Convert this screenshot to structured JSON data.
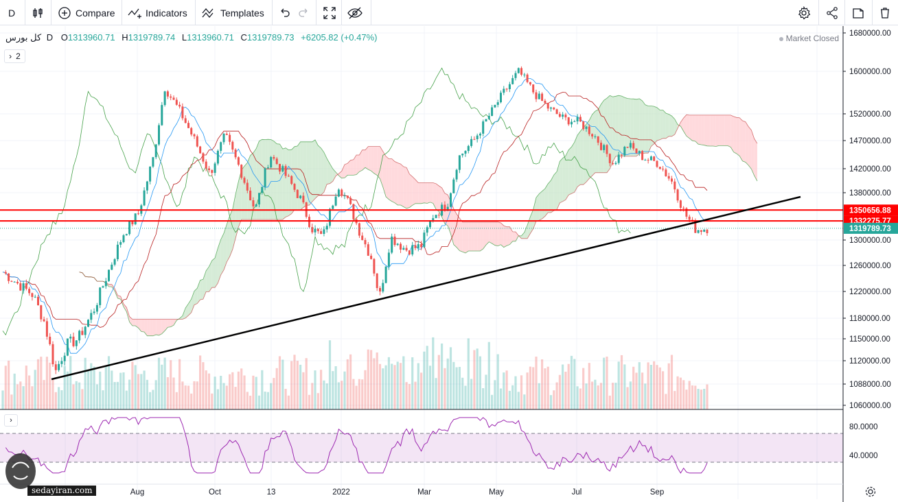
{
  "toolbar": {
    "interval": "D",
    "compare_label": "Compare",
    "indicators_label": "Indicators",
    "templates_label": "Templates"
  },
  "legend": {
    "symbol": "کل بورس",
    "interval": "D",
    "open_label": "O",
    "open": "1313960.71",
    "high_label": "H",
    "high": "1319789.74",
    "low_label": "L",
    "low": "1313960.71",
    "close_label": "C",
    "close": "1319789.73",
    "change": "+6205.82 (+0.47%)",
    "collapse_count": "2"
  },
  "market_status": "Market Closed",
  "price_tags": {
    "tag1": "1350656.88",
    "tag2": "1332275.77",
    "tag3": "1319789.73"
  },
  "rsi_ticks": [
    "80.0000",
    "40.0000"
  ],
  "watermark": "sedayiran.com",
  "colors": {
    "up": "#26a69a",
    "down": "#ef5350",
    "tenkan": "#2196f3",
    "kijun": "#b71c1c",
    "lagging": "#43a047",
    "cloud_bull": "#c8e6c9",
    "cloud_bear": "#ffcdd2",
    "rsi": "#9c27b0",
    "hline": "#ff0000",
    "trendline": "#000000"
  },
  "chart_data": {
    "type": "candlestick",
    "symbol": "کل بورس",
    "interval": "D",
    "y_ticks": [
      1680000,
      1600000,
      1520000,
      1470000,
      1420000,
      1380000,
      1300000,
      1260000,
      1220000,
      1180000,
      1150000,
      1120000,
      1088000,
      1060000
    ],
    "y_tick_labels": [
      "1680000.00",
      "1600000.00",
      "1520000.00",
      "1470000.00",
      "1420000.00",
      "1380000.00",
      "1300000.00",
      "1260000.00",
      "1220000.00",
      "1180000.00",
      "1150000.00",
      "1120000.00",
      "1088000.00",
      "1060000.00"
    ],
    "x_labels": [
      "Aug",
      "Oct",
      "13",
      "2022",
      "Mar",
      "May",
      "Jul",
      "Sep"
    ],
    "close_path": [
      {
        "x": 0,
        "y": 1250000
      },
      {
        "x": 0.02,
        "y": 1232000
      },
      {
        "x": 0.04,
        "y": 1215000
      },
      {
        "x": 0.055,
        "y": 1175000
      },
      {
        "x": 0.07,
        "y": 1105000
      },
      {
        "x": 0.085,
        "y": 1142000
      },
      {
        "x": 0.1,
        "y": 1150000
      },
      {
        "x": 0.12,
        "y": 1190000
      },
      {
        "x": 0.14,
        "y": 1250000
      },
      {
        "x": 0.16,
        "y": 1310000
      },
      {
        "x": 0.18,
        "y": 1345000
      },
      {
        "x": 0.2,
        "y": 1440000
      },
      {
        "x": 0.215,
        "y": 1570000
      },
      {
        "x": 0.235,
        "y": 1525000
      },
      {
        "x": 0.255,
        "y": 1470000
      },
      {
        "x": 0.275,
        "y": 1410000
      },
      {
        "x": 0.295,
        "y": 1480000
      },
      {
        "x": 0.315,
        "y": 1420000
      },
      {
        "x": 0.335,
        "y": 1350000
      },
      {
        "x": 0.355,
        "y": 1445000
      },
      {
        "x": 0.375,
        "y": 1410000
      },
      {
        "x": 0.395,
        "y": 1370000
      },
      {
        "x": 0.41,
        "y": 1320000
      },
      {
        "x": 0.425,
        "y": 1305000
      },
      {
        "x": 0.445,
        "y": 1395000
      },
      {
        "x": 0.46,
        "y": 1360000
      },
      {
        "x": 0.475,
        "y": 1310000
      },
      {
        "x": 0.49,
        "y": 1270000
      },
      {
        "x": 0.5,
        "y": 1210000
      },
      {
        "x": 0.515,
        "y": 1305000
      },
      {
        "x": 0.535,
        "y": 1285000
      },
      {
        "x": 0.555,
        "y": 1290000
      },
      {
        "x": 0.57,
        "y": 1340000
      },
      {
        "x": 0.59,
        "y": 1360000
      },
      {
        "x": 0.605,
        "y": 1440000
      },
      {
        "x": 0.625,
        "y": 1470000
      },
      {
        "x": 0.645,
        "y": 1515000
      },
      {
        "x": 0.665,
        "y": 1560000
      },
      {
        "x": 0.685,
        "y": 1600000
      },
      {
        "x": 0.705,
        "y": 1560000
      },
      {
        "x": 0.725,
        "y": 1530000
      },
      {
        "x": 0.745,
        "y": 1510000
      },
      {
        "x": 0.765,
        "y": 1505000
      },
      {
        "x": 0.785,
        "y": 1480000
      },
      {
        "x": 0.81,
        "y": 1430000
      },
      {
        "x": 0.83,
        "y": 1462000
      },
      {
        "x": 0.85,
        "y": 1440000
      },
      {
        "x": 0.87,
        "y": 1430000
      },
      {
        "x": 0.89,
        "y": 1395000
      },
      {
        "x": 0.905,
        "y": 1345000
      },
      {
        "x": 0.92,
        "y": 1318000
      },
      {
        "x": 0.935,
        "y": 1320000
      }
    ],
    "rsi_ticks": [
      80,
      40
    ],
    "rsi_band": [
      30,
      70
    ],
    "horizontal_lines": [
      1350656.88,
      1332275.77
    ],
    "last_price": 1319789.73
  }
}
